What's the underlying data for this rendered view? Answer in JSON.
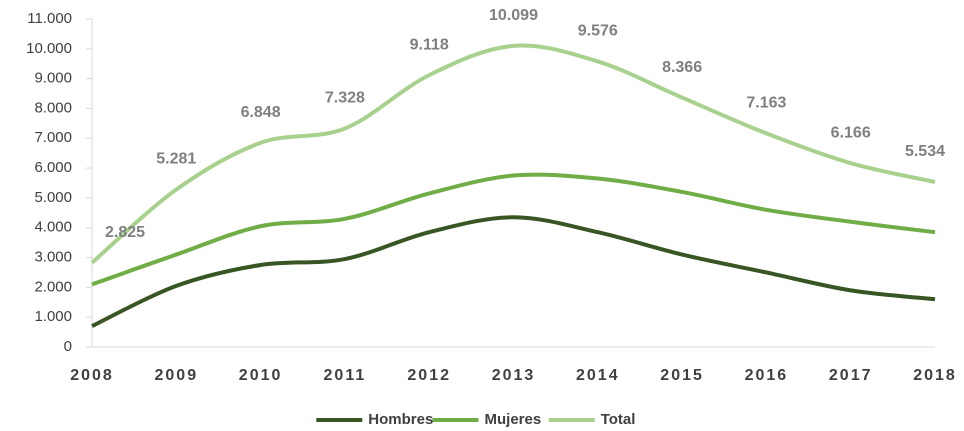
{
  "chart_data": {
    "type": "line",
    "categories": [
      "2008",
      "2009",
      "2010",
      "2011",
      "2012",
      "2013",
      "2014",
      "2015",
      "2016",
      "2017",
      "2018"
    ],
    "ylim": [
      0,
      11000
    ],
    "yticks": [
      0,
      {
        "value": 1000,
        "label": "1.000"
      },
      {
        "value": 2000,
        "label": "2.000"
      },
      {
        "value": 3000,
        "label": "3.000"
      },
      {
        "value": 4000,
        "label": "4.000"
      },
      {
        "value": 5000,
        "label": "5.000"
      },
      {
        "value": 6000,
        "label": "6.000"
      },
      {
        "value": 7000,
        "label": "7.000"
      },
      {
        "value": 8000,
        "label": "8.000"
      },
      {
        "value": 9000,
        "label": "9.000"
      },
      {
        "value": 10000,
        "label": "10.000"
      },
      {
        "value": 11000,
        "label": "11.000"
      }
    ],
    "series": [
      {
        "name": "Hombres",
        "color": "#375623",
        "values": [
          700,
          2050,
          2750,
          2950,
          3850,
          4350,
          3850,
          3100,
          2500,
          1900,
          1600
        ]
      },
      {
        "name": "Mujeres",
        "color": "#70ad47",
        "values": [
          2100,
          3100,
          4050,
          4300,
          5150,
          5750,
          5650,
          5200,
          4600,
          4200,
          3850
        ]
      },
      {
        "name": "Total",
        "color": "#a9d18e",
        "values": [
          2825,
          5281,
          6848,
          7328,
          9118,
          10099,
          9576,
          8366,
          7163,
          6166,
          5534
        ],
        "value_labels": [
          "2.825",
          "5.281",
          "6.848",
          "7.328",
          "9.118",
          "10.099",
          "9.576",
          "8.366",
          "7.163",
          "6.166",
          "5.534"
        ]
      }
    ]
  }
}
